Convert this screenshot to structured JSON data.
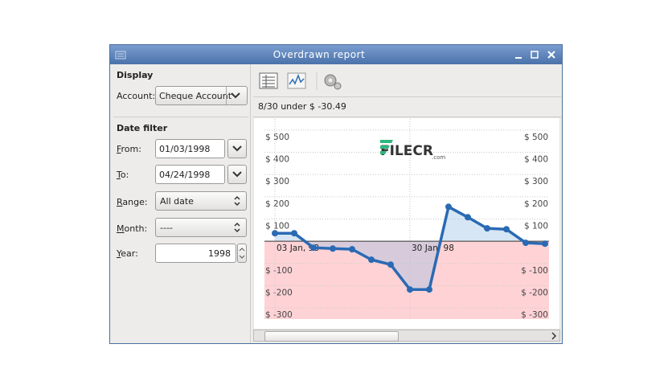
{
  "window": {
    "title": "Overdrawn report"
  },
  "display": {
    "heading": "Display",
    "account_label": "Account:",
    "account_value": "Cheque Account"
  },
  "date_filter": {
    "heading": "Date filter",
    "from_label": "From:",
    "from_value": "01/03/1998",
    "to_label": "To:",
    "to_value": "04/24/1998",
    "range_label": "Range:",
    "range_value": "All date",
    "month_label": "Month:",
    "month_value": "----",
    "year_label": "Year:",
    "year_value": "1998"
  },
  "status": "8/30 under $ -30.49",
  "watermark": {
    "brand": "FILECR",
    "domain": ".com"
  },
  "chart_data": {
    "type": "line",
    "categories": [
      "03 Jan, 98",
      null,
      null,
      null,
      null,
      null,
      null,
      "30 Jan, 98",
      null,
      null,
      null,
      null,
      null,
      null,
      null
    ],
    "values": [
      36,
      36,
      -29,
      -33,
      -36,
      -83,
      -105,
      -217,
      -217,
      155,
      108,
      58,
      54,
      -7,
      -11
    ],
    "color": "#2a6ab4",
    "fill_color": "#9cc0e4",
    "negative_region_color": "#ffd3d6",
    "ylim": [
      -350,
      550
    ],
    "yticks": [
      {
        "value": 500,
        "label": "$ 500"
      },
      {
        "value": 400,
        "label": "$ 400"
      },
      {
        "value": 300,
        "label": "$ 300"
      },
      {
        "value": 200,
        "label": "$ 200"
      },
      {
        "value": 100,
        "label": "$ 100"
      },
      {
        "value": -100,
        "label": "$ -100"
      },
      {
        "value": -200,
        "label": "$ -200"
      },
      {
        "value": -300,
        "label": "$ -300"
      }
    ],
    "grid": true
  }
}
